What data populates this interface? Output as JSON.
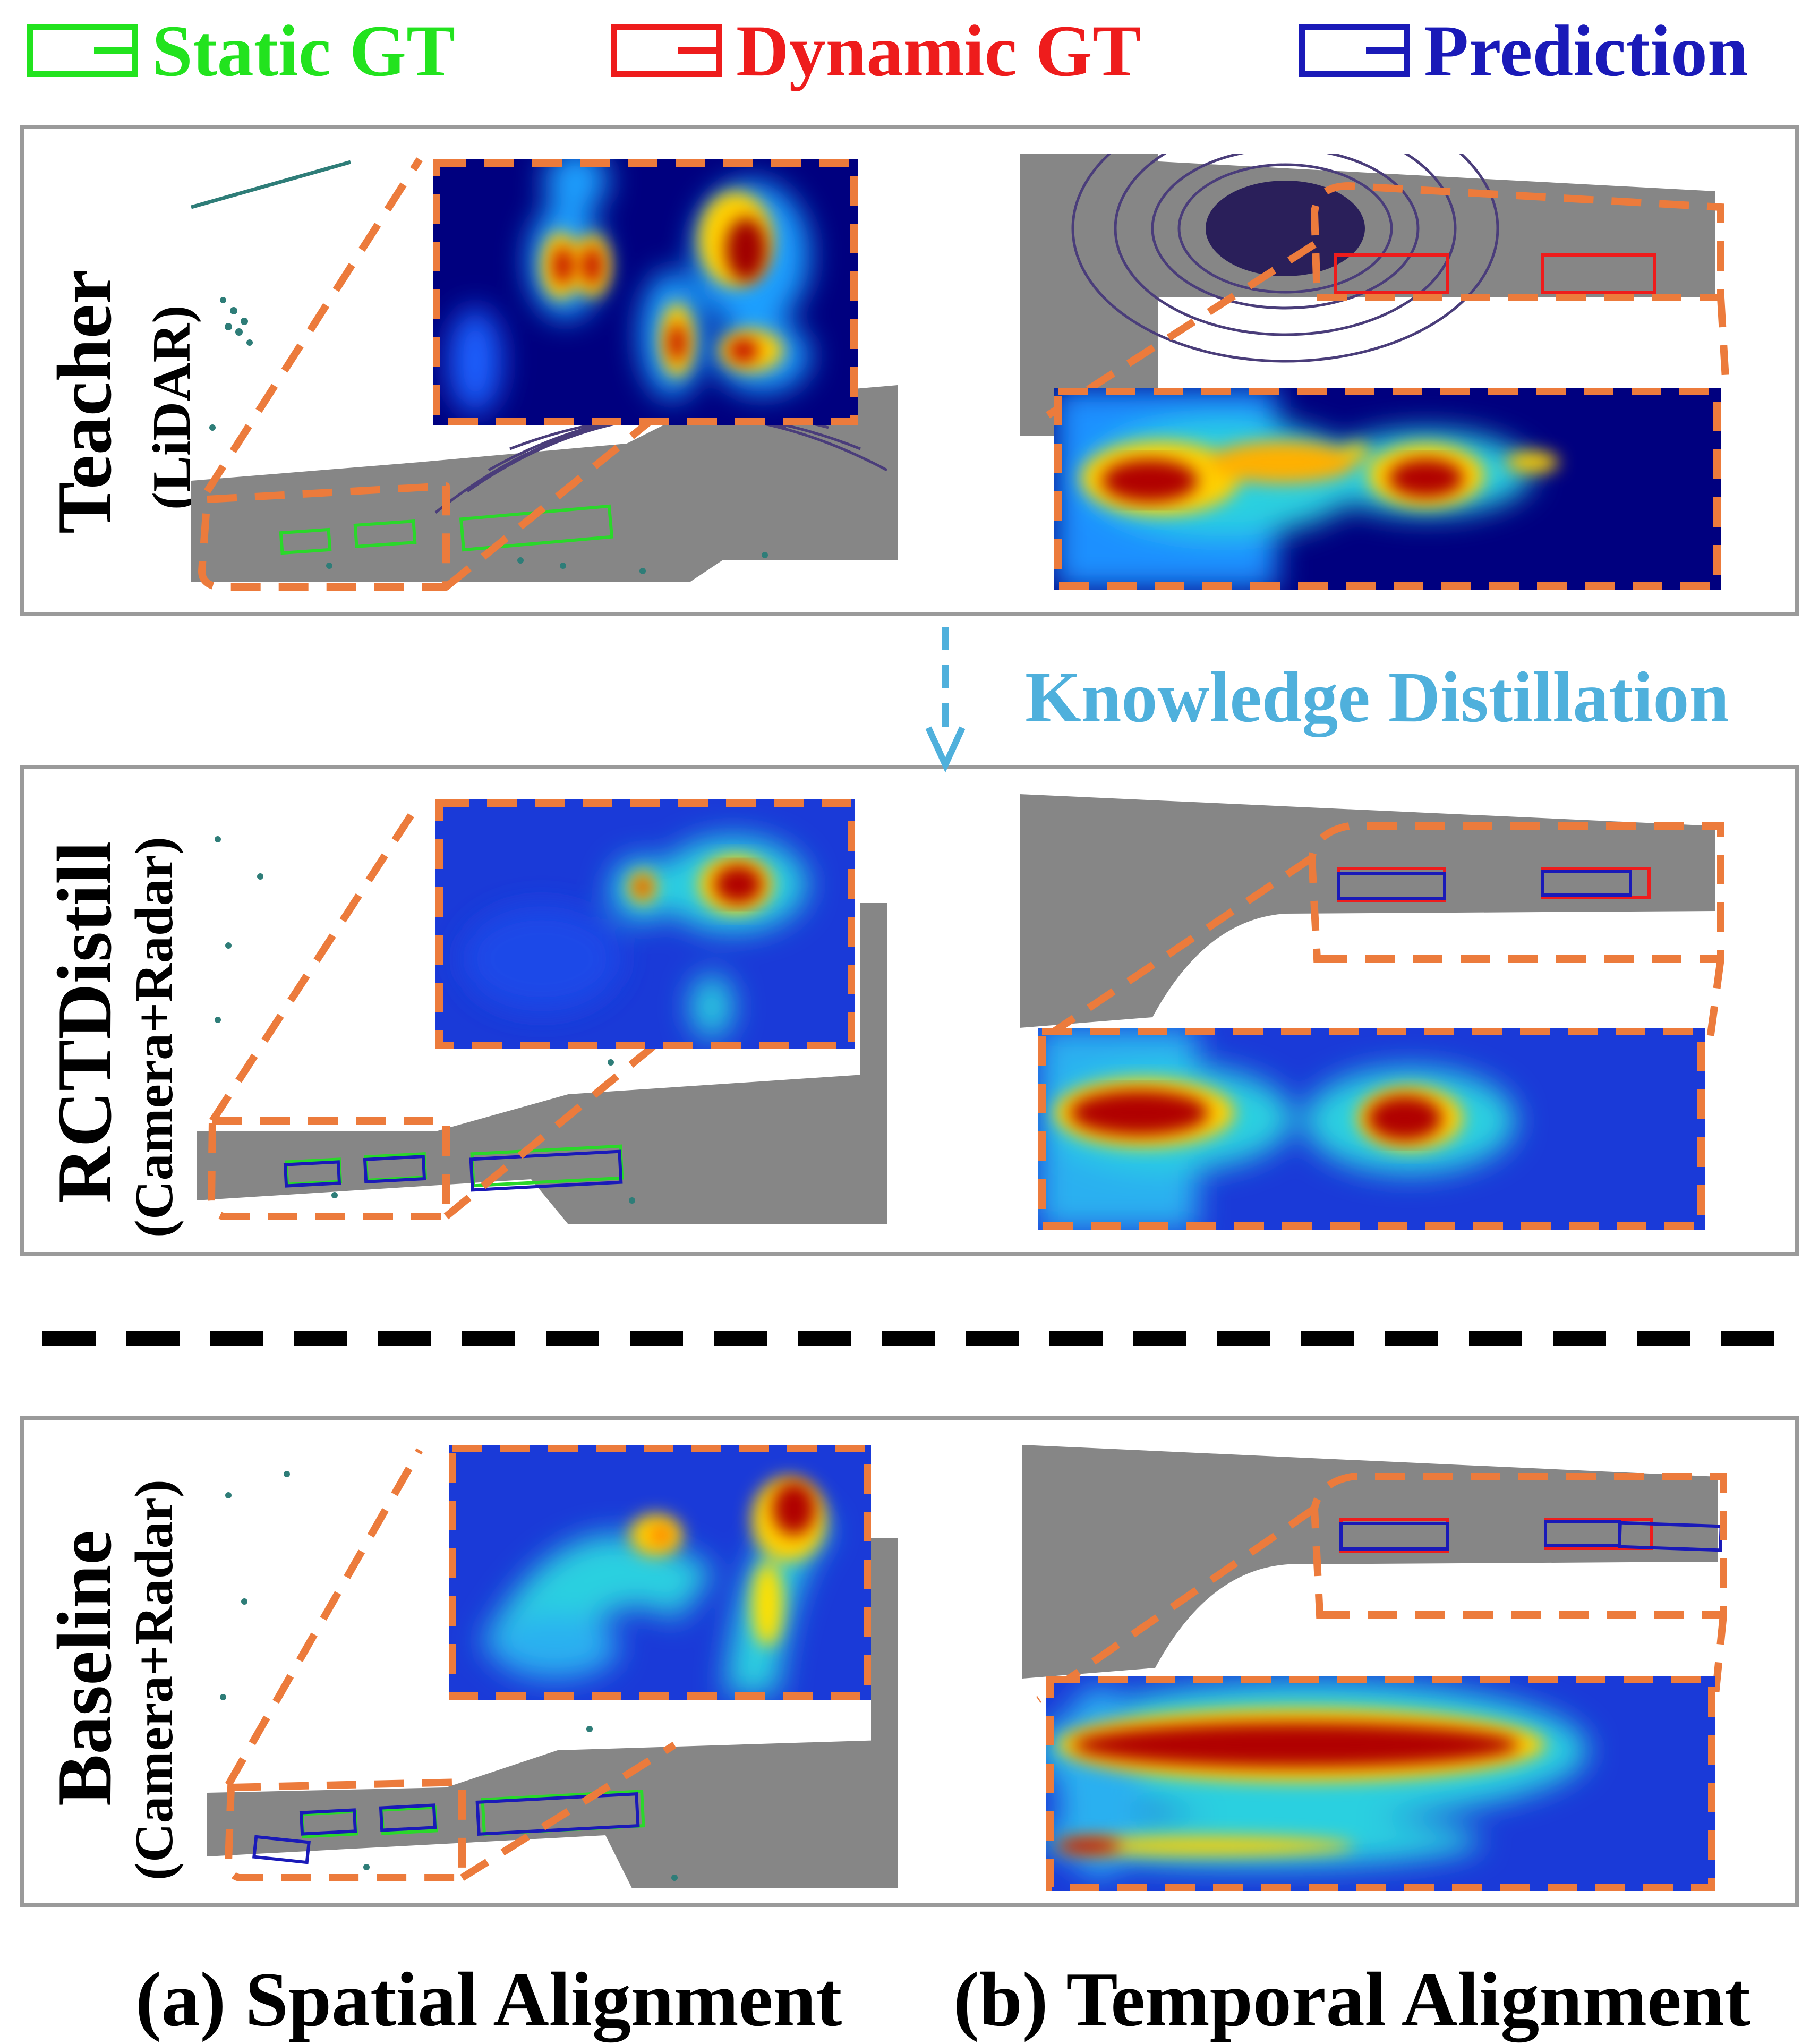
{
  "legend": [
    {
      "label": "Static GT",
      "color": "#22e31e"
    },
    {
      "label": "Dynamic GT",
      "color": "#ee1c1c"
    },
    {
      "label": "Prediction",
      "color": "#1a1ab8"
    }
  ],
  "rows": [
    {
      "title": "Teacher",
      "subtitle": "(LiDAR)"
    },
    {
      "title": "RCTDistill",
      "subtitle": "(Camera+Radar)"
    },
    {
      "title": "Baseline",
      "subtitle": "(Camera+Radar)"
    }
  ],
  "knowledge_distillation": "Knowledge Distillation",
  "captions": {
    "spatial": "(a) Spatial Alignment",
    "temporal": "(b) Temporal Alignment"
  },
  "colors": {
    "callout": "#ec7b3c",
    "road": "#868686",
    "frame": "#9a9a9a",
    "heat_bg": "#00007f",
    "arrow": "#4fb0dc"
  }
}
